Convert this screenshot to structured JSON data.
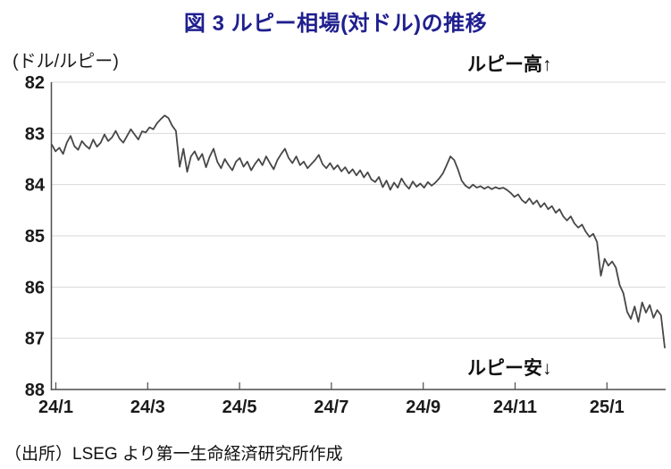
{
  "title": {
    "text": "図 3  ルピー相場(対ドル)の推移",
    "color": "#1f1f8f"
  },
  "unit_label": "(ドル/ルピー)",
  "annotations": {
    "high": "ルピー高↑",
    "low": "ルピー安↓"
  },
  "source": "（出所）LSEG より第一生命経済研究所作成",
  "chart_data": {
    "type": "line",
    "title": "図 3  ルピー相場(対ドル)の推移",
    "ylabel": "ドル/ルピー",
    "xlabel": "",
    "grid": "horizontal",
    "legend": "none",
    "y_axis": {
      "min": 82,
      "max": 88,
      "reversed": true,
      "ticks": [
        82,
        83,
        84,
        85,
        86,
        87,
        88
      ]
    },
    "x_axis": {
      "tick_labels": [
        "24/1",
        "24/3",
        "24/5",
        "24/7",
        "24/9",
        "24/11",
        "25/1"
      ]
    },
    "colors": {
      "line": "#474747",
      "gridline": "#d9d9d9",
      "axis": "#4d4d4d",
      "tick_text": "#1a1a1a"
    },
    "series": [
      {
        "values": [
          83.22,
          83.35,
          83.28,
          83.4,
          83.18,
          83.05,
          83.25,
          83.32,
          83.15,
          83.24,
          83.3,
          83.12,
          83.26,
          83.18,
          83.02,
          83.15,
          83.08,
          82.95,
          83.1,
          83.18,
          83.05,
          82.92,
          83.02,
          83.12,
          82.96,
          82.98,
          82.88,
          82.92,
          82.8,
          82.72,
          82.65,
          82.7,
          82.85,
          82.95,
          83.65,
          83.3,
          83.75,
          83.45,
          83.35,
          83.52,
          83.4,
          83.66,
          83.45,
          83.3,
          83.55,
          83.68,
          83.5,
          83.62,
          83.72,
          83.55,
          83.48,
          83.65,
          83.55,
          83.72,
          83.6,
          83.5,
          83.62,
          83.45,
          83.58,
          83.7,
          83.52,
          83.4,
          83.3,
          83.48,
          83.58,
          83.45,
          83.62,
          83.55,
          83.68,
          83.6,
          83.52,
          83.42,
          83.6,
          83.68,
          83.58,
          83.7,
          83.62,
          83.74,
          83.66,
          83.78,
          83.7,
          83.82,
          83.72,
          83.86,
          83.76,
          83.9,
          83.95,
          83.85,
          84.05,
          83.92,
          84.1,
          83.96,
          84.06,
          83.88,
          84.0,
          84.08,
          83.94,
          84.04,
          83.98,
          84.06,
          83.95,
          84.02,
          83.96,
          83.88,
          83.78,
          83.62,
          83.45,
          83.52,
          83.7,
          83.92,
          84.02,
          84.07,
          84.0,
          84.06,
          84.03,
          84.08,
          84.04,
          84.09,
          84.05,
          84.08,
          84.06,
          84.1,
          84.16,
          84.24,
          84.19,
          84.3,
          84.36,
          84.27,
          84.38,
          84.31,
          84.44,
          84.36,
          84.48,
          84.42,
          84.55,
          84.48,
          84.62,
          84.7,
          84.62,
          84.76,
          84.84,
          84.78,
          84.92,
          85.02,
          84.96,
          85.12,
          85.78,
          85.45,
          85.58,
          85.5,
          85.62,
          85.96,
          86.12,
          86.48,
          86.62,
          86.38,
          86.68,
          86.3,
          86.5,
          86.35,
          86.6,
          86.45,
          86.55,
          87.18
        ]
      }
    ]
  }
}
